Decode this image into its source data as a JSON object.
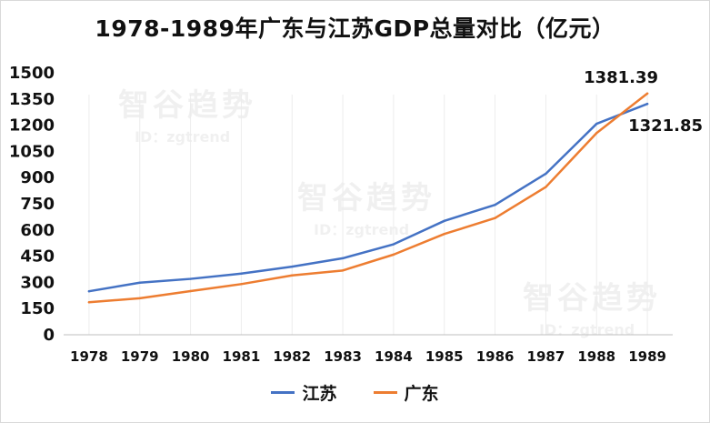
{
  "title": "1978-1989年广东与江苏GDP总量对比（亿元）",
  "watermark": {
    "name": "智谷趋势",
    "id": "ID：zgtrend"
  },
  "chart_data": {
    "type": "line",
    "title": "1978-1989年广东与江苏GDP总量对比（亿元）",
    "categories": [
      "1978",
      "1979",
      "1980",
      "1981",
      "1982",
      "1983",
      "1984",
      "1985",
      "1986",
      "1987",
      "1988",
      "1989"
    ],
    "ylim": [
      0,
      1500
    ],
    "yticks": [
      0,
      150,
      300,
      450,
      600,
      750,
      900,
      1050,
      1200,
      1350,
      1500
    ],
    "ytick_labels": [
      "0",
      "150",
      "300",
      "450",
      "600",
      "750",
      "900",
      "1050",
      "1200",
      "1350",
      "1500"
    ],
    "grid": false,
    "legend_position": "bottom",
    "series": [
      {
        "name": "江苏",
        "color": "#4472c4",
        "values": [
          249,
          298,
          320,
          350,
          390,
          438,
          518,
          652,
          744,
          922,
          1208,
          1321.85
        ]
      },
      {
        "name": "广东",
        "color": "#ed7d31",
        "values": [
          186,
          209,
          250,
          290,
          340,
          368,
          459,
          577,
          668,
          846,
          1155,
          1381.39
        ]
      }
    ],
    "data_labels": [
      {
        "series": "广东",
        "category": "1989",
        "text": "1381.39"
      },
      {
        "series": "江苏",
        "category": "1989",
        "text": "1321.85"
      }
    ]
  }
}
